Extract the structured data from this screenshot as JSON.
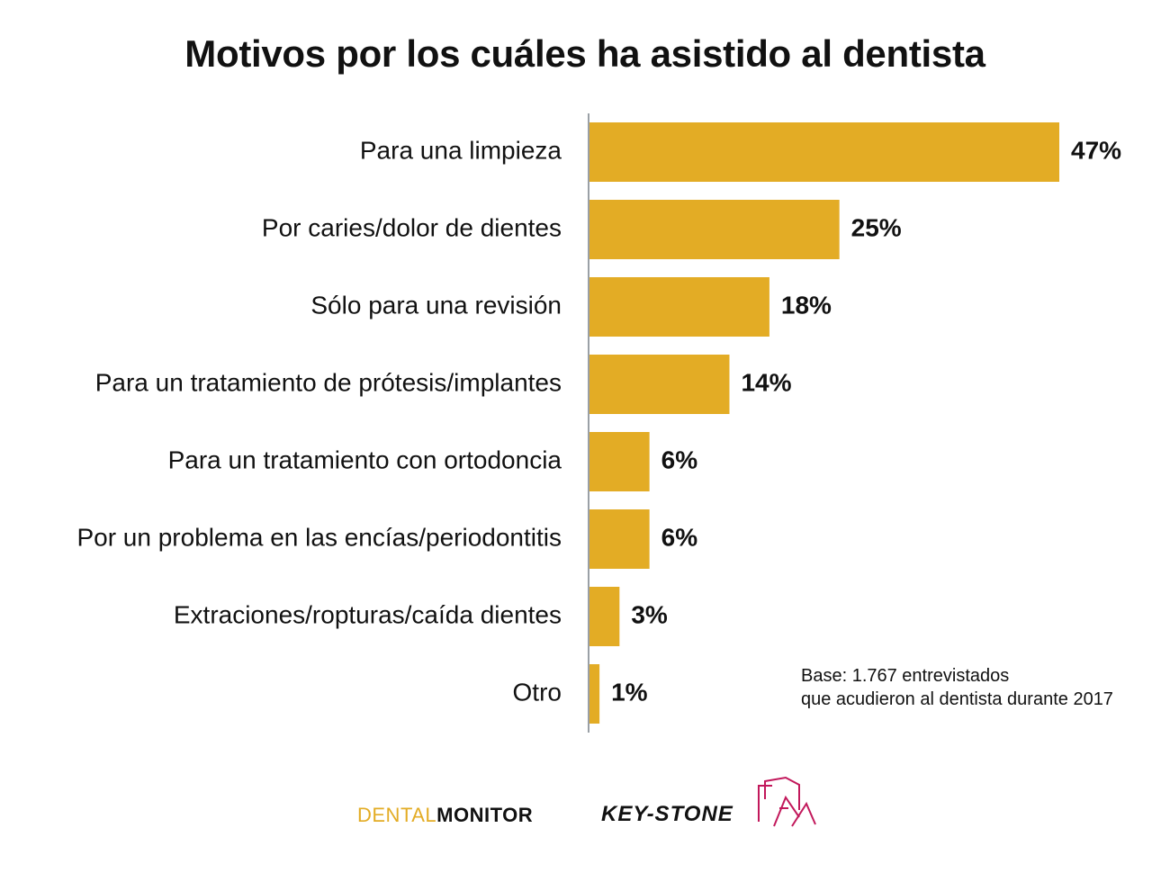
{
  "chart_data": {
    "type": "bar",
    "orientation": "horizontal",
    "title": "Motivos por los cuáles ha asistido al dentista",
    "categories": [
      "Para una limpieza",
      "Por caries/dolor de dientes",
      "Sólo para una revisión",
      "Para un tratamiento de prótesis/implantes",
      "Para un tratamiento con ortodoncia",
      "Por un problema en las encías/periodontitis",
      "Extraciones/ropturas/caída dientes",
      "Otro"
    ],
    "values": [
      47,
      25,
      18,
      14,
      6,
      6,
      3,
      1
    ],
    "value_labels": [
      "47%",
      "25%",
      "18%",
      "14%",
      "6%",
      "6%",
      "3%",
      "1%"
    ],
    "xlim": [
      0,
      48
    ],
    "grid": false,
    "bar_color": "#e3ac25",
    "axis_color": "#9aa0a6"
  },
  "note": {
    "line1": "Base: 1.767 entrevistados",
    "line2": "que acudieron al dentista durante 2017"
  },
  "logos": {
    "dental_monitor": {
      "part1": "DENTAL",
      "part2": "MONITOR",
      "color": "#e3ac25"
    },
    "keystone": {
      "text": "KEY-STONE",
      "mark_color": "#c2185b"
    }
  }
}
